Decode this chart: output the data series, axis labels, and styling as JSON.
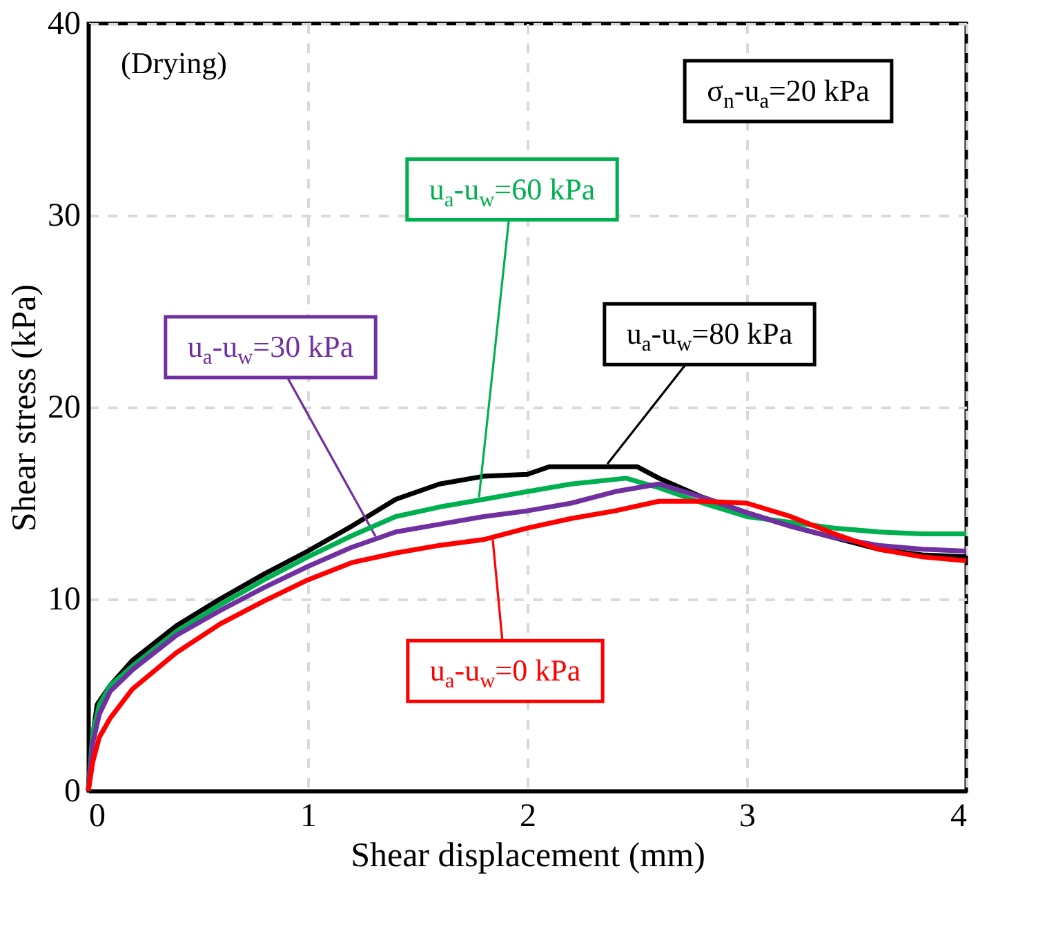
{
  "chart_data": {
    "type": "line",
    "xlabel": "Shear displacement (mm)",
    "ylabel": "Shear stress (kPa)",
    "xlim": [
      0,
      4
    ],
    "xticks": [
      0,
      1,
      2,
      3,
      4
    ],
    "ylim": [
      0,
      40
    ],
    "yticks": [
      0,
      10,
      20,
      30,
      40
    ],
    "grid": true,
    "legend": false,
    "marker": "none",
    "line_style": "solid",
    "series": [
      {
        "name": "u$_{a}$-u$_{w}$=80 kPa",
        "color": "#000000",
        "x": [
          0,
          0.01,
          0.04,
          0.1,
          0.2,
          0.4,
          0.6,
          0.8,
          1.0,
          1.2,
          1.4,
          1.6,
          1.8,
          2.0,
          2.1,
          2.5,
          2.6,
          2.8,
          3.0,
          3.2,
          3.4,
          3.6,
          3.8,
          4.0
        ],
        "values": [
          0,
          2,
          4.5,
          5.5,
          6.8,
          8.6,
          10,
          11.3,
          12.5,
          13.8,
          15.2,
          16.0,
          16.4,
          16.5,
          16.9,
          16.9,
          16.3,
          15.3,
          14.5,
          13.8,
          13.2,
          12.6,
          12.3,
          12.2
        ]
      },
      {
        "name": "u$_{a}$-u$_{w}$=60 kPa",
        "color": "#00b050",
        "x": [
          0,
          0.02,
          0.05,
          0.1,
          0.2,
          0.4,
          0.6,
          0.8,
          1.0,
          1.2,
          1.4,
          1.6,
          1.8,
          2.0,
          2.2,
          2.45,
          2.6,
          2.8,
          3.0,
          3.2,
          3.4,
          3.6,
          3.8,
          4.0
        ],
        "values": [
          0,
          3,
          4.5,
          5.5,
          6.5,
          8.3,
          9.7,
          11,
          12.2,
          13.3,
          14.3,
          14.8,
          15.2,
          15.6,
          16.0,
          16.3,
          15.8,
          15,
          14.3,
          14.0,
          13.7,
          13.5,
          13.4,
          13.4
        ]
      },
      {
        "name": "u$_{a}$-u$_{w}$=30 kPa",
        "color": "#7030a0",
        "x": [
          0,
          0.02,
          0.05,
          0.1,
          0.2,
          0.4,
          0.6,
          0.8,
          1.0,
          1.2,
          1.4,
          1.6,
          1.8,
          2.0,
          2.2,
          2.4,
          2.6,
          2.8,
          3.0,
          3.2,
          3.4,
          3.6,
          3.8,
          4.0
        ],
        "values": [
          0,
          2.5,
          4,
          5.2,
          6.3,
          8.1,
          9.4,
          10.6,
          11.7,
          12.7,
          13.5,
          13.9,
          14.3,
          14.6,
          15.0,
          15.6,
          16.0,
          15.3,
          14.5,
          13.8,
          13.2,
          12.8,
          12.6,
          12.5
        ]
      },
      {
        "name": "u$_{a}$-u$_{w}$=0 kPa",
        "color": "#ff0000",
        "x": [
          0,
          0.02,
          0.05,
          0.1,
          0.2,
          0.4,
          0.6,
          0.8,
          1.0,
          1.2,
          1.4,
          1.6,
          1.8,
          2.0,
          2.2,
          2.4,
          2.6,
          2.8,
          3.0,
          3.2,
          3.4,
          3.6,
          3.8,
          4.0
        ],
        "values": [
          0,
          1.5,
          2.8,
          3.8,
          5.3,
          7.2,
          8.7,
          9.9,
          11,
          11.9,
          12.4,
          12.8,
          13.1,
          13.7,
          14.2,
          14.6,
          15.1,
          15.1,
          15.0,
          14.3,
          13.4,
          12.6,
          12.2,
          12.0
        ]
      }
    ],
    "annotations": [
      "(Drying)",
      "σ$_{n}$-u$_{a}$=20 kPa"
    ]
  }
}
